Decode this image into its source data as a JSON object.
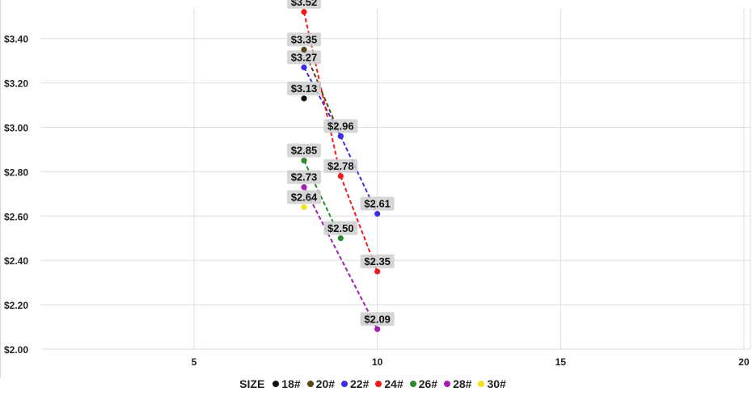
{
  "chart_data": {
    "type": "line",
    "x_ticks": [
      5,
      10,
      15,
      20
    ],
    "y_ticks": [
      "$2.00",
      "$2.20",
      "$2.40",
      "$2.60",
      "$2.80",
      "$3.00",
      "$3.20",
      "$3.40"
    ],
    "xlim": [
      1,
      20.2
    ],
    "ylim": [
      2.0,
      3.53
    ],
    "grid": true,
    "legend_position": "bottom",
    "legend_title": "SIZE",
    "series": [
      {
        "name": "18#",
        "color": "#111111",
        "points": [
          {
            "x": 8,
            "y": 3.13,
            "label": "$3.13"
          }
        ]
      },
      {
        "name": "20#",
        "color": "#5a4414",
        "points": [
          {
            "x": 8,
            "y": 3.35,
            "label": "$3.35"
          },
          {
            "x": 9,
            "y": 2.96,
            "label": ""
          }
        ]
      },
      {
        "name": "22#",
        "color": "#3b2ee6",
        "points": [
          {
            "x": 8,
            "y": 3.27,
            "label": "$3.27"
          },
          {
            "x": 9,
            "y": 2.96,
            "label": "$2.96"
          },
          {
            "x": 10,
            "y": 2.61,
            "label": "$2.61"
          }
        ]
      },
      {
        "name": "24#",
        "color": "#ee1c1c",
        "points": [
          {
            "x": 8,
            "y": 3.52,
            "label": "$3.52"
          },
          {
            "x": 9,
            "y": 2.78,
            "label": "$2.78"
          },
          {
            "x": 10,
            "y": 2.35,
            "label": "$2.35"
          }
        ]
      },
      {
        "name": "26#",
        "color": "#2e8a2e",
        "points": [
          {
            "x": 8,
            "y": 2.85,
            "label": "$2.85"
          },
          {
            "x": 9,
            "y": 2.5,
            "label": "$2.50"
          }
        ]
      },
      {
        "name": "28#",
        "color": "#a020b0",
        "points": [
          {
            "x": 8,
            "y": 2.73,
            "label": "$2.73"
          },
          {
            "x": 10,
            "y": 2.09,
            "label": "$2.09"
          }
        ]
      },
      {
        "name": "30#",
        "color": "#f2e21a",
        "points": [
          {
            "x": 8,
            "y": 2.64,
            "label": "$2.64"
          }
        ]
      }
    ]
  }
}
